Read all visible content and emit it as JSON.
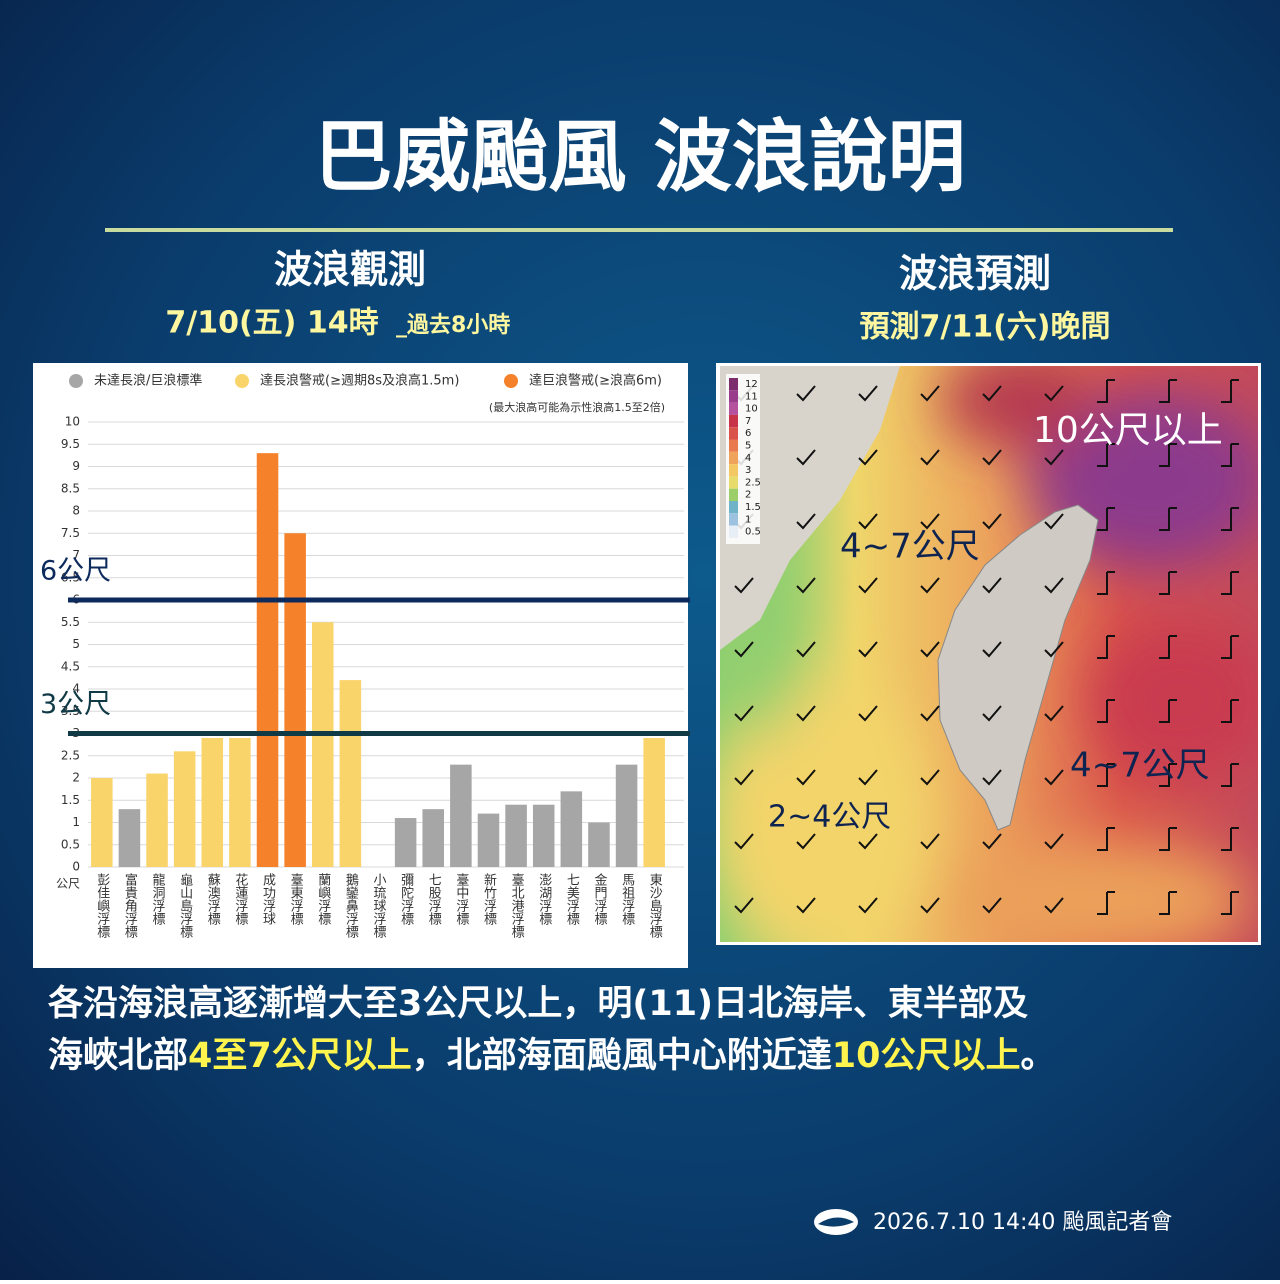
{
  "header": {
    "title": "巴威颱風 波浪說明"
  },
  "left": {
    "heading": "波浪觀測",
    "date": "7/10(五) 14時",
    "date_note": "_過去8小時"
  },
  "right": {
    "heading": "波浪預測",
    "date": "預測7/11(六)晚間"
  },
  "chart_data": {
    "type": "bar",
    "note": "(最大浪高可能為示性浪高1.5至2倍)",
    "y_unit": "公尺",
    "categories": [
      "彭佳嶼浮標",
      "富貴角浮標",
      "龍洞浮標",
      "龜山島浮標",
      "蘇澳浮標",
      "花蓮浮標",
      "成功浮球",
      "臺東浮標",
      "蘭嶼浮標",
      "鵝鑾鼻浮標",
      "小琉球浮標",
      "彌陀浮標",
      "七股浮標",
      "臺中浮標",
      "新竹浮標",
      "臺北港浮標",
      "澎湖浮標",
      "七美浮標",
      "金門浮標",
      "馬祖浮標",
      "東沙島浮標"
    ],
    "series": [
      {
        "name": "未達長浪/巨浪標準",
        "color": "#a6a6a6",
        "values": [
          null,
          1.3,
          null,
          null,
          null,
          null,
          null,
          null,
          null,
          null,
          null,
          1.1,
          1.3,
          2.3,
          1.2,
          1.4,
          1.4,
          1.7,
          1.0,
          2.3,
          null
        ]
      },
      {
        "name": "達長浪警戒(≥週期8s及浪高1.5m)",
        "color": "#f9d46b",
        "values": [
          2.0,
          null,
          2.1,
          2.6,
          2.9,
          2.9,
          null,
          null,
          5.5,
          4.2,
          null,
          null,
          null,
          null,
          null,
          null,
          null,
          null,
          null,
          null,
          2.9
        ]
      },
      {
        "name": "達巨浪警戒(≥浪高6m)",
        "color": "#f5822a",
        "values": [
          null,
          null,
          null,
          null,
          null,
          null,
          9.3,
          7.5,
          null,
          null,
          null,
          null,
          null,
          null,
          null,
          null,
          null,
          null,
          null,
          null,
          null
        ]
      }
    ],
    "ylim": [
      0,
      10
    ],
    "yticks": [
      0,
      0.5,
      1,
      1.5,
      2,
      2.5,
      3,
      3.5,
      4,
      4.5,
      5,
      5.5,
      6,
      6.5,
      7,
      7.5,
      8,
      8.5,
      9,
      9.5,
      10
    ],
    "grid": true,
    "reference_lines": [
      {
        "value": 6,
        "label": "6公尺",
        "color": "#0d2a5c"
      },
      {
        "value": 3,
        "label": "3公尺",
        "color": "#0f3a46"
      }
    ]
  },
  "map": {
    "scale_ticks": [
      12,
      11,
      10,
      7,
      6,
      5,
      4,
      3,
      2.5,
      2,
      1.5,
      1,
      0.5
    ],
    "scale_colors": [
      "#7b2d6e",
      "#9a3c8c",
      "#b5519e",
      "#c7344a",
      "#d9534a",
      "#e97a4e",
      "#f0a35a",
      "#f3c862",
      "#e7db6b",
      "#9ccf6a",
      "#6fb3c9",
      "#9dc2e0",
      "#e8eef6"
    ],
    "labels": [
      "10公尺以上",
      "4~7公尺",
      "4~7公尺",
      "2~4公尺"
    ]
  },
  "body": {
    "highlight_color": "#fff34d",
    "lines": [
      [
        {
          "text": "各沿海浪高逐漸增大至3公尺以上，明(11)日北海岸、東半部及",
          "highlight": false
        }
      ],
      [
        {
          "text": "海峽北部",
          "highlight": false
        },
        {
          "text": "4至7公尺以上",
          "highlight": true
        },
        {
          "text": "，北部海面颱風中心附近達",
          "highlight": false
        },
        {
          "text": "10公尺以上",
          "highlight": true
        },
        {
          "text": "。",
          "highlight": false
        }
      ]
    ]
  },
  "footer": {
    "text": "2026.7.10 14:40 颱風記者會"
  }
}
